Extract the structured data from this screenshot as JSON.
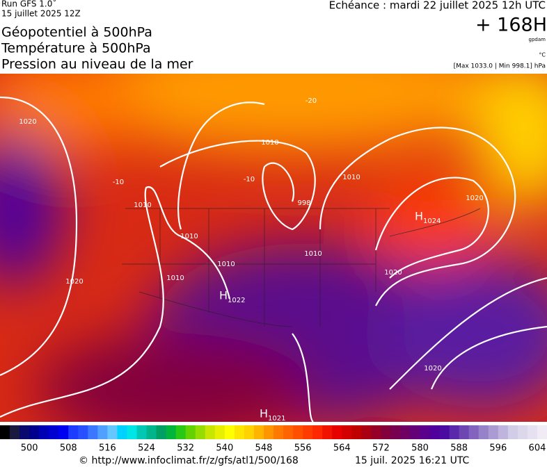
{
  "header": {
    "run": "Run GFS 1.0˚",
    "date": "15 juillet 2025 12Z",
    "echeance": "Echéance : mardi 22 juillet 2025 12h UTC",
    "lead": "+ 168H",
    "unit_geo": "gpdam",
    "unit_temp": "°C",
    "extrema": "[Max 1033.0 | Min 998.1] hPa",
    "titles": [
      "Géopotentiel à 500hPa",
      "Température à 500hPa",
      "Pression au niveau de la mer"
    ]
  },
  "map": {
    "labels": [
      "1020",
      "1010",
      "1010",
      "1010",
      "1010",
      "1020",
      "1010",
      "1010",
      "1010",
      "1020",
      "1020",
      "1020",
      "998",
      "-20",
      "-10",
      "-10"
    ],
    "highs": [
      {
        "symbol": "H",
        "value": "1024"
      },
      {
        "symbol": "H",
        "value": "1022"
      },
      {
        "symbol": "H",
        "value": "1021"
      }
    ]
  },
  "colorbar": {
    "lim": [
      494,
      606
    ],
    "ticks": [
      500,
      508,
      516,
      524,
      532,
      540,
      548,
      556,
      564,
      572,
      580,
      588,
      596,
      604
    ],
    "colors": [
      "#000000",
      "#1a1a40",
      "#0a0a6e",
      "#00008c",
      "#0000b4",
      "#0000d2",
      "#0000f0",
      "#1e3cff",
      "#2850ff",
      "#3c78ff",
      "#50a0ff",
      "#64c8ff",
      "#00d2ff",
      "#00e6e6",
      "#00c8b4",
      "#00b48c",
      "#00a064",
      "#00b43c",
      "#28c814",
      "#64d200",
      "#96dc00",
      "#c8e600",
      "#e6f000",
      "#ffff00",
      "#ffe600",
      "#ffd200",
      "#ffb400",
      "#ff9600",
      "#ff7800",
      "#ff6400",
      "#ff5000",
      "#ff3c00",
      "#ff2800",
      "#f01400",
      "#e60000",
      "#d20000",
      "#be0000",
      "#aa0014",
      "#960028",
      "#82003c",
      "#780050",
      "#6e0064",
      "#640078",
      "#5a008c",
      "#50009b",
      "#4b0aa0",
      "#5a28aa",
      "#6e46b4",
      "#8264be",
      "#9682c8",
      "#aa9bd2",
      "#beb4dc",
      "#d2cde6",
      "#dcd7eb",
      "#e6e1f0",
      "#f0ebf5"
    ]
  },
  "footer": {
    "url": "© http://www.infoclimat.fr/z/gfs/atl1/500/168",
    "timestamp": "15 juil. 2025 16:21 UTC"
  }
}
